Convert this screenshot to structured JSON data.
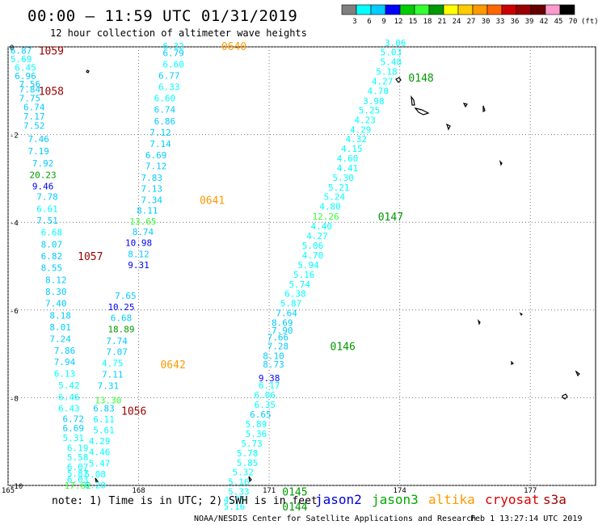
{
  "header": {
    "title": "00:00 – 11:59 UTC 01/31/2019",
    "subtitle": "12 hour collection of altimeter wave heights"
  },
  "legend": {
    "labels": [
      "3",
      "6",
      "9",
      "12",
      "15",
      "18",
      "21",
      "24",
      "27",
      "30",
      "33",
      "36",
      "39",
      "42",
      "45",
      "70"
    ],
    "unit": "(ft)",
    "colors": [
      "#7f7f7f",
      "#00ffff",
      "#00ccff",
      "#0000ff",
      "#00cc00",
      "#33ff33",
      "#009900",
      "#ffff00",
      "#ffcc00",
      "#ff9900",
      "#ff6600",
      "#cc0000",
      "#990000",
      "#660000",
      "#ff99cc",
      "#000000"
    ]
  },
  "axes": {
    "x_ticks": [
      "165",
      "168",
      "171",
      "174",
      "177"
    ],
    "y_ticks": [
      "0",
      "-2",
      "-4",
      "-6",
      "-8",
      "-10"
    ]
  },
  "footer": {
    "note": "note: 1) Time is in UTC; 2) SWH is in feet",
    "satellites": [
      {
        "name": "jason2",
        "color": "#0000dd"
      },
      {
        "name": "jason3",
        "color": "#00aa00"
      },
      {
        "name": "altika",
        "color": "#ff9900"
      },
      {
        "name": "cryosat",
        "color": "#dd0000"
      },
      {
        "name": "s3a",
        "color": "#aa0000"
      }
    ],
    "credit": "NOAA/NESDIS Center for Satellite Applications and Research",
    "timestamp": "Feb  1 13:27:14 UTC 2019"
  },
  "chart_data": {
    "type": "scatter",
    "title": "00:00 – 11:59 UTC 01/31/2019",
    "subtitle": "12 hour collection of altimeter wave heights",
    "xlim": [
      165,
      178.5
    ],
    "ylim": [
      -10,
      0
    ],
    "x_ticks": [
      165,
      168,
      171,
      174,
      177
    ],
    "y_ticks": [
      0,
      -2,
      -4,
      -6,
      -8,
      -10
    ],
    "grid": true,
    "tracks": [
      {
        "name": "track-left",
        "points": [
          {
            "x": 165.3,
            "y": -0.08,
            "v": "6.87",
            "c": "#00ccff"
          },
          {
            "x": 165.3,
            "y": -0.28,
            "v": "5.69",
            "c": "#00ffff"
          },
          {
            "x": 165.4,
            "y": -0.47,
            "v": "6.45",
            "c": "#00ffff"
          },
          {
            "x": 165.4,
            "y": -0.66,
            "v": "6.96",
            "c": "#00ccff"
          },
          {
            "x": 165.5,
            "y": -0.85,
            "v": "7.56",
            "c": "#00ccff"
          },
          {
            "x": 165.5,
            "y": -0.97,
            "v": "7.84",
            "c": "#00ccff"
          },
          {
            "x": 165.5,
            "y": -1.17,
            "v": "7.75",
            "c": "#00ccff"
          },
          {
            "x": 165.6,
            "y": -1.37,
            "v": "6.74",
            "c": "#00ccff"
          },
          {
            "x": 165.6,
            "y": -1.58,
            "v": "7.17",
            "c": "#00ccff"
          },
          {
            "x": 165.6,
            "y": -1.8,
            "v": "7.52",
            "c": "#00ccff"
          },
          {
            "x": 165.7,
            "y": -2.1,
            "v": "7.46",
            "c": "#00ccff"
          },
          {
            "x": 165.7,
            "y": -2.38,
            "v": "7.19",
            "c": "#00ccff"
          },
          {
            "x": 165.8,
            "y": -2.65,
            "v": "7.92",
            "c": "#00ccff"
          },
          {
            "x": 165.8,
            "y": -2.92,
            "v": "20.23",
            "c": "#009900"
          },
          {
            "x": 165.8,
            "y": -3.18,
            "v": "9.46",
            "c": "#0000ff"
          },
          {
            "x": 165.9,
            "y": -3.42,
            "v": "7.78",
            "c": "#00ccff"
          },
          {
            "x": 165.9,
            "y": -3.69,
            "v": "6.61",
            "c": "#00ffff"
          },
          {
            "x": 165.9,
            "y": -3.96,
            "v": "7.51",
            "c": "#00ccff"
          },
          {
            "x": 166.0,
            "y": -4.23,
            "v": "6.68",
            "c": "#00ffff"
          },
          {
            "x": 166.0,
            "y": -4.5,
            "v": "8.07",
            "c": "#00ccff"
          },
          {
            "x": 166.0,
            "y": -4.77,
            "v": "6.82",
            "c": "#00ccff"
          },
          {
            "x": 166.0,
            "y": -5.04,
            "v": "8.55",
            "c": "#00ccff"
          },
          {
            "x": 166.1,
            "y": -5.31,
            "v": "8.12",
            "c": "#00ccff"
          },
          {
            "x": 166.1,
            "y": -5.58,
            "v": "8.30",
            "c": "#00ccff"
          },
          {
            "x": 166.1,
            "y": -5.85,
            "v": "7.40",
            "c": "#00ccff"
          },
          {
            "x": 166.2,
            "y": -6.12,
            "v": "8.18",
            "c": "#00ccff"
          },
          {
            "x": 166.2,
            "y": -6.39,
            "v": "8.01",
            "c": "#00ccff"
          },
          {
            "x": 166.2,
            "y": -6.66,
            "v": "7.24",
            "c": "#00ccff"
          },
          {
            "x": 166.3,
            "y": -6.92,
            "v": "7.86",
            "c": "#00ccff"
          },
          {
            "x": 166.3,
            "y": -7.18,
            "v": "7.94",
            "c": "#00ccff"
          },
          {
            "x": 166.3,
            "y": -7.45,
            "v": "6.13",
            "c": "#00ffff"
          },
          {
            "x": 166.4,
            "y": -7.72,
            "v": "5.42",
            "c": "#00ffff"
          },
          {
            "x": 166.4,
            "y": -7.98,
            "v": "6.46",
            "c": "#00ffff"
          },
          {
            "x": 166.4,
            "y": -8.24,
            "v": "6.43",
            "c": "#00ffff"
          },
          {
            "x": 166.5,
            "y": -8.48,
            "v": "6.72",
            "c": "#00ccff"
          },
          {
            "x": 166.5,
            "y": -8.69,
            "v": "6.69",
            "c": "#00ccff"
          },
          {
            "x": 166.5,
            "y": -8.91,
            "v": "5.31",
            "c": "#00ffff"
          },
          {
            "x": 166.6,
            "y": -9.14,
            "v": "6.19",
            "c": "#00ffff"
          },
          {
            "x": 166.6,
            "y": -9.36,
            "v": "5.58",
            "c": "#00ffff"
          },
          {
            "x": 166.6,
            "y": -9.58,
            "v": "6.07",
            "c": "#00ffff"
          },
          {
            "x": 166.6,
            "y": -9.72,
            "v": "5.87",
            "c": "#00ffff"
          },
          {
            "x": 166.6,
            "y": -9.86,
            "v": "6.03",
            "c": "#00ffff"
          },
          {
            "x": 166.6,
            "y": -10.0,
            "v": "17.62",
            "c": "#33ff33"
          }
        ]
      },
      {
        "name": "track-middle",
        "points": [
          {
            "x": 168.8,
            "y": 0.02,
            "v": "6.32",
            "c": "#00ffff"
          },
          {
            "x": 168.8,
            "y": -0.14,
            "v": "6.79",
            "c": "#00ccff"
          },
          {
            "x": 168.8,
            "y": -0.4,
            "v": "6.60",
            "c": "#00ffff"
          },
          {
            "x": 168.7,
            "y": -0.65,
            "v": "6.77",
            "c": "#00ccff"
          },
          {
            "x": 168.7,
            "y": -0.91,
            "v": "6.33",
            "c": "#00ffff"
          },
          {
            "x": 168.6,
            "y": -1.17,
            "v": "6.60",
            "c": "#00ffff"
          },
          {
            "x": 168.6,
            "y": -1.43,
            "v": "6.74",
            "c": "#00ccff"
          },
          {
            "x": 168.6,
            "y": -1.69,
            "v": "6.86",
            "c": "#00ccff"
          },
          {
            "x": 168.5,
            "y": -1.95,
            "v": "7.12",
            "c": "#00ccff"
          },
          {
            "x": 168.5,
            "y": -2.21,
            "v": "7.14",
            "c": "#00ccff"
          },
          {
            "x": 168.4,
            "y": -2.47,
            "v": "6.69",
            "c": "#00ccff"
          },
          {
            "x": 168.4,
            "y": -2.72,
            "v": "7.12",
            "c": "#00ccff"
          },
          {
            "x": 168.3,
            "y": -2.98,
            "v": "7.83",
            "c": "#00ccff"
          },
          {
            "x": 168.3,
            "y": -3.23,
            "v": "7.13",
            "c": "#00ccff"
          },
          {
            "x": 168.3,
            "y": -3.49,
            "v": "7.34",
            "c": "#00ccff"
          },
          {
            "x": 168.2,
            "y": -3.73,
            "v": "8.11",
            "c": "#00ccff"
          },
          {
            "x": 168.1,
            "y": -3.98,
            "v": "13.65",
            "c": "#33ff33"
          },
          {
            "x": 168.1,
            "y": -4.22,
            "v": "8.74",
            "c": "#00ccff"
          },
          {
            "x": 168.0,
            "y": -4.47,
            "v": "10.98",
            "c": "#0000ff"
          },
          {
            "x": 168.0,
            "y": -4.72,
            "v": "8.12",
            "c": "#00ccff"
          },
          {
            "x": 168.0,
            "y": -4.97,
            "v": "9.31",
            "c": "#0000ff"
          },
          {
            "x": 167.7,
            "y": -5.67,
            "v": "7.65",
            "c": "#00ccff"
          },
          {
            "x": 167.6,
            "y": -5.93,
            "v": "10.25",
            "c": "#0000ff"
          },
          {
            "x": 167.6,
            "y": -6.18,
            "v": "6.68",
            "c": "#00ccff"
          },
          {
            "x": 167.6,
            "y": -6.44,
            "v": "18.89",
            "c": "#009900"
          },
          {
            "x": 167.5,
            "y": -6.7,
            "v": "7.74",
            "c": "#00ccff"
          },
          {
            "x": 167.5,
            "y": -6.95,
            "v": "7.07",
            "c": "#00ccff"
          },
          {
            "x": 167.4,
            "y": -7.21,
            "v": "4.75",
            "c": "#00ffff"
          },
          {
            "x": 167.4,
            "y": -7.47,
            "v": "7.11",
            "c": "#00ccff"
          },
          {
            "x": 167.3,
            "y": -7.73,
            "v": "7.31",
            "c": "#00ccff"
          },
          {
            "x": 167.3,
            "y": -8.06,
            "v": "13.30",
            "c": "#33ff33"
          },
          {
            "x": 167.2,
            "y": -8.24,
            "v": "6.83",
            "c": "#00ccff"
          },
          {
            "x": 167.2,
            "y": -8.49,
            "v": "6.11",
            "c": "#00ffff"
          },
          {
            "x": 167.2,
            "y": -8.74,
            "v": "5.61",
            "c": "#00ffff"
          },
          {
            "x": 167.1,
            "y": -8.99,
            "v": "4.29",
            "c": "#00ffff"
          },
          {
            "x": 167.1,
            "y": -9.24,
            "v": "4.46",
            "c": "#00ffff"
          },
          {
            "x": 167.1,
            "y": -9.49,
            "v": "5.47",
            "c": "#00ffff"
          },
          {
            "x": 167.0,
            "y": -9.74,
            "v": "5.08",
            "c": "#00ffff"
          },
          {
            "x": 167.0,
            "y": -9.99,
            "v": "6.20",
            "c": "#00ffff"
          }
        ]
      },
      {
        "name": "track-right",
        "points": [
          {
            "x": 173.9,
            "y": 0.09,
            "v": "3.06",
            "c": "#00ffff"
          },
          {
            "x": 173.8,
            "y": -0.12,
            "v": "5.03",
            "c": "#00ffff"
          },
          {
            "x": 173.8,
            "y": -0.34,
            "v": "5.48",
            "c": "#00ffff"
          },
          {
            "x": 173.7,
            "y": -0.56,
            "v": "5.18",
            "c": "#00ffff"
          },
          {
            "x": 173.6,
            "y": -0.78,
            "v": "4.27",
            "c": "#00ffff"
          },
          {
            "x": 173.5,
            "y": -1.0,
            "v": "4.70",
            "c": "#00ffff"
          },
          {
            "x": 173.4,
            "y": -1.23,
            "v": "3.98",
            "c": "#00ffff"
          },
          {
            "x": 173.3,
            "y": -1.45,
            "v": "5.25",
            "c": "#00ffff"
          },
          {
            "x": 173.2,
            "y": -1.67,
            "v": "4.23",
            "c": "#00ffff"
          },
          {
            "x": 173.1,
            "y": -1.89,
            "v": "4.29",
            "c": "#00ffff"
          },
          {
            "x": 173.0,
            "y": -2.1,
            "v": "4.32",
            "c": "#00ffff"
          },
          {
            "x": 172.9,
            "y": -2.32,
            "v": "4.15",
            "c": "#00ffff"
          },
          {
            "x": 172.8,
            "y": -2.54,
            "v": "4.60",
            "c": "#00ffff"
          },
          {
            "x": 172.8,
            "y": -2.76,
            "v": "4.41",
            "c": "#00ffff"
          },
          {
            "x": 172.7,
            "y": -2.98,
            "v": "5.30",
            "c": "#00ffff"
          },
          {
            "x": 172.6,
            "y": -3.2,
            "v": "5.21",
            "c": "#00ffff"
          },
          {
            "x": 172.5,
            "y": -3.42,
            "v": "5.24",
            "c": "#00ffff"
          },
          {
            "x": 172.4,
            "y": -3.64,
            "v": "4.80",
            "c": "#00ffff"
          },
          {
            "x": 172.3,
            "y": -3.87,
            "v": "12.26",
            "c": "#33ff33"
          },
          {
            "x": 172.2,
            "y": -4.09,
            "v": "4.40",
            "c": "#00ffff"
          },
          {
            "x": 172.1,
            "y": -4.31,
            "v": "4.27",
            "c": "#00ffff"
          },
          {
            "x": 172.0,
            "y": -4.53,
            "v": "5.06",
            "c": "#00ffff"
          },
          {
            "x": 172.0,
            "y": -4.75,
            "v": "4.70",
            "c": "#00ffff"
          },
          {
            "x": 171.9,
            "y": -4.97,
            "v": "5.94",
            "c": "#00ffff"
          },
          {
            "x": 171.8,
            "y": -5.19,
            "v": "5.16",
            "c": "#00ffff"
          },
          {
            "x": 171.7,
            "y": -5.41,
            "v": "5.74",
            "c": "#00ffff"
          },
          {
            "x": 171.6,
            "y": -5.63,
            "v": "6.38",
            "c": "#00ffff"
          },
          {
            "x": 171.5,
            "y": -5.85,
            "v": "5.87",
            "c": "#00ffff"
          },
          {
            "x": 171.4,
            "y": -6.07,
            "v": "7.64",
            "c": "#00ccff"
          },
          {
            "x": 171.3,
            "y": -6.29,
            "v": "8.69",
            "c": "#00ccff"
          },
          {
            "x": 171.3,
            "y": -6.46,
            "v": "7.90",
            "c": "#00ccff"
          },
          {
            "x": 171.2,
            "y": -6.62,
            "v": "7.66",
            "c": "#00ccff"
          },
          {
            "x": 171.2,
            "y": -6.82,
            "v": "7.28",
            "c": "#00ccff"
          },
          {
            "x": 171.1,
            "y": -7.04,
            "v": "8.10",
            "c": "#00ccff"
          },
          {
            "x": 171.1,
            "y": -7.24,
            "v": "8.73",
            "c": "#00ccff"
          },
          {
            "x": 171.0,
            "y": -7.55,
            "v": "9.38",
            "c": "#0000ff"
          },
          {
            "x": 171.0,
            "y": -7.72,
            "v": "6.17",
            "c": "#00ffff"
          },
          {
            "x": 170.9,
            "y": -7.94,
            "v": "6.06",
            "c": "#00ffff"
          },
          {
            "x": 170.9,
            "y": -8.16,
            "v": "6.35",
            "c": "#00ffff"
          },
          {
            "x": 170.8,
            "y": -8.38,
            "v": "6.65",
            "c": "#00ccff"
          },
          {
            "x": 170.7,
            "y": -8.6,
            "v": "5.89",
            "c": "#00ffff"
          },
          {
            "x": 170.7,
            "y": -8.82,
            "v": "5.36",
            "c": "#00ffff"
          },
          {
            "x": 170.6,
            "y": -9.04,
            "v": "5.73",
            "c": "#00ffff"
          },
          {
            "x": 170.5,
            "y": -9.26,
            "v": "5.78",
            "c": "#00ffff"
          },
          {
            "x": 170.5,
            "y": -9.48,
            "v": "5.85",
            "c": "#00ffff"
          },
          {
            "x": 170.4,
            "y": -9.7,
            "v": "5.32",
            "c": "#00ffff"
          },
          {
            "x": 170.3,
            "y": -9.92,
            "v": "5.16",
            "c": "#00ffff"
          },
          {
            "x": 170.3,
            "y": -10.14,
            "v": "5.33",
            "c": "#00ffff"
          },
          {
            "x": 170.2,
            "y": -10.32,
            "v": "4.75",
            "c": "#00ffff"
          },
          {
            "x": 170.2,
            "y": -10.48,
            "v": "5.16",
            "c": "#00ffff"
          }
        ]
      }
    ],
    "time_labels": [
      {
        "x": 165.7,
        "y": -0.08,
        "t": "1059",
        "c": "#990000"
      },
      {
        "x": 165.7,
        "y": -1.0,
        "t": "1058",
        "c": "#990000"
      },
      {
        "x": 166.6,
        "y": -4.77,
        "t": "1057",
        "c": "#990000"
      },
      {
        "x": 167.6,
        "y": -8.3,
        "t": "1056",
        "c": "#990000"
      },
      {
        "x": 169.9,
        "y": 0.02,
        "t": "0640",
        "c": "#ff9900"
      },
      {
        "x": 169.4,
        "y": -3.49,
        "t": "0641",
        "c": "#ff9900"
      },
      {
        "x": 168.5,
        "y": -7.24,
        "t": "0642",
        "c": "#ff9900"
      },
      {
        "x": 174.2,
        "y": -0.7,
        "t": "0148",
        "c": "#009900"
      },
      {
        "x": 173.5,
        "y": -3.87,
        "t": "0147",
        "c": "#009900"
      },
      {
        "x": 172.4,
        "y": -6.82,
        "t": "0146",
        "c": "#009900"
      },
      {
        "x": 171.3,
        "y": -10.14,
        "t": "0145",
        "c": "#009900"
      },
      {
        "x": 171.3,
        "y": -10.48,
        "t": "0144",
        "c": "#009900"
      }
    ]
  }
}
